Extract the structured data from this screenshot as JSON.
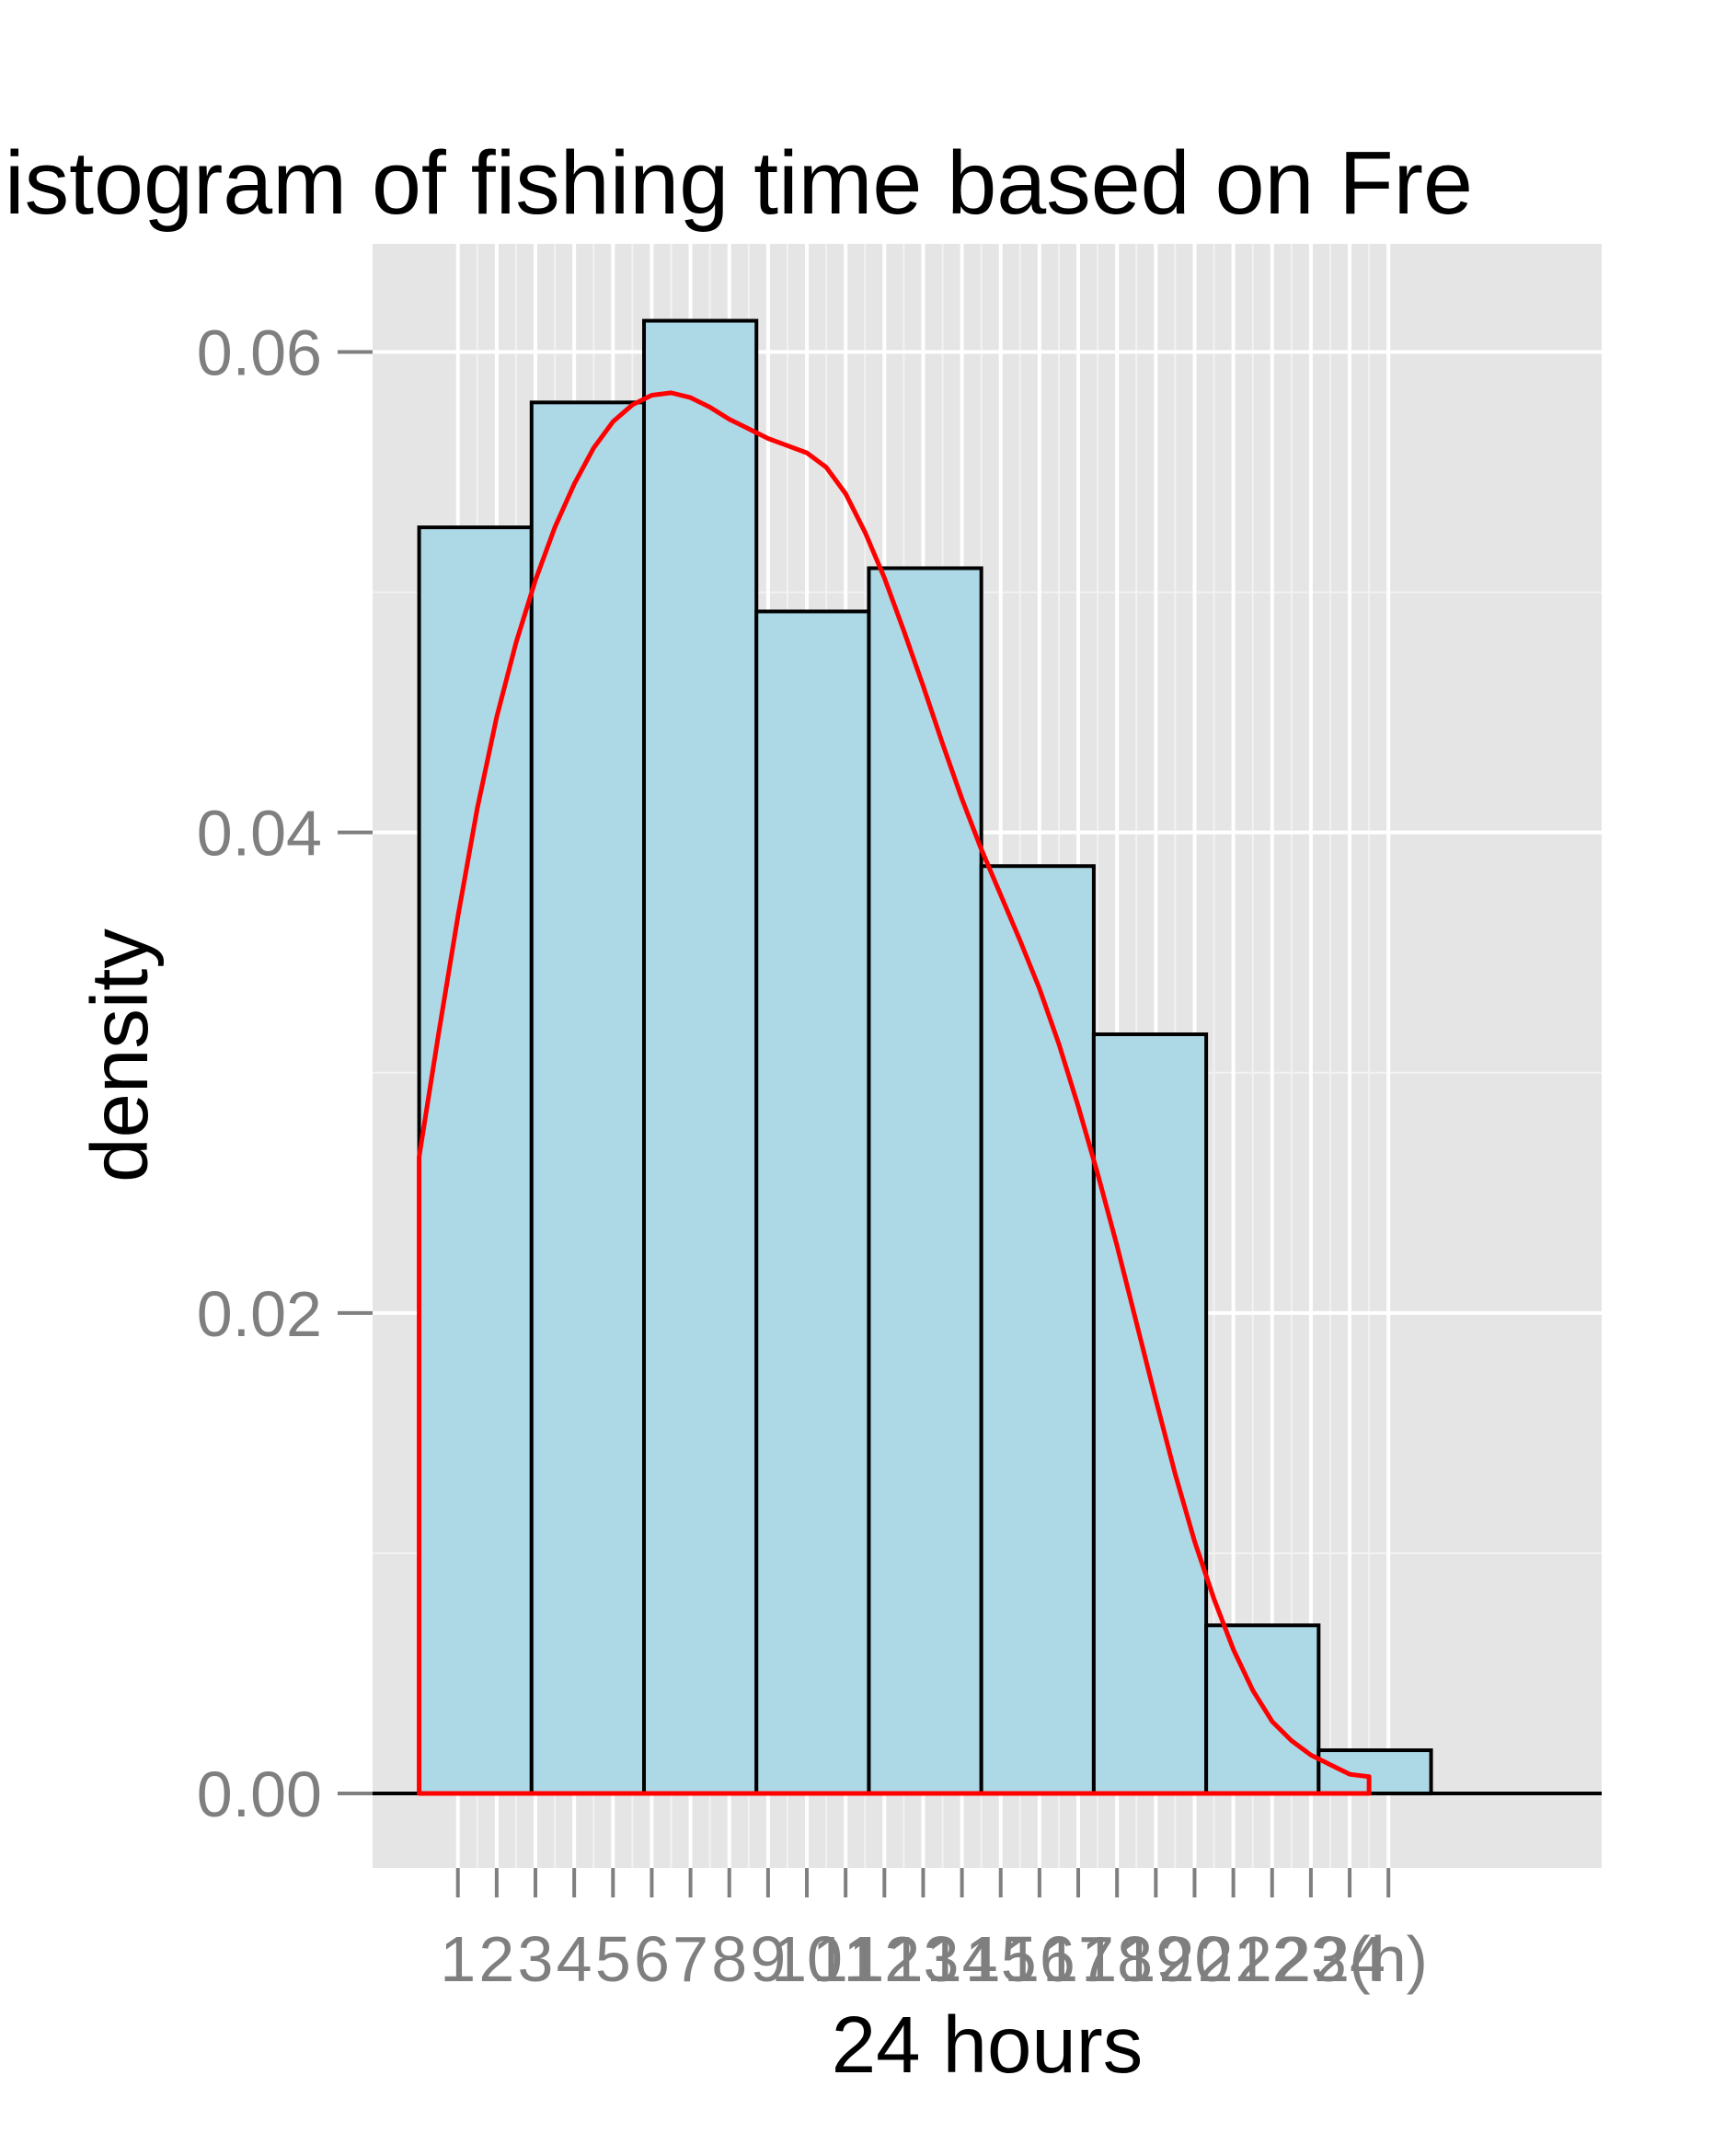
{
  "chart_data": {
    "type": "bar",
    "title": "Histogram of fishing time based on Fre",
    "xlabel": "24 hours",
    "ylabel": "density",
    "xlim": [
      -1.2,
      30.5
    ],
    "ylim": [
      -0.0031,
      0.0645
    ],
    "y_ticks": [
      0.0,
      0.02,
      0.04,
      0.06
    ],
    "y_tick_labels": [
      "0.00",
      "0.02",
      "0.04",
      "0.06"
    ],
    "x_ticks": [
      1,
      2,
      3,
      4,
      5,
      6,
      7,
      8,
      9,
      10,
      11,
      12,
      13,
      14,
      15,
      16,
      17,
      18,
      19,
      20,
      21,
      22,
      23,
      24,
      25
    ],
    "x_tick_labels": [
      "1",
      "2",
      "3",
      "4",
      "5",
      "6",
      "7",
      "8",
      "9",
      "10",
      "11",
      "12",
      "13",
      "14",
      "15",
      "16",
      "17",
      "18",
      "19",
      "20",
      "21",
      "22",
      "23",
      "24",
      "(h)"
    ],
    "grid": true,
    "bins": [
      {
        "x0": 0.0,
        "x1": 2.9,
        "density": 0.0527
      },
      {
        "x0": 2.9,
        "x1": 5.8,
        "density": 0.0579
      },
      {
        "x0": 5.8,
        "x1": 8.7,
        "density": 0.0613
      },
      {
        "x0": 8.7,
        "x1": 11.6,
        "density": 0.0492
      },
      {
        "x0": 11.6,
        "x1": 14.5,
        "density": 0.051
      },
      {
        "x0": 14.5,
        "x1": 17.4,
        "density": 0.0386
      },
      {
        "x0": 17.4,
        "x1": 20.3,
        "density": 0.0316
      },
      {
        "x0": 20.3,
        "x1": 23.2,
        "density": 0.007
      },
      {
        "x0": 23.2,
        "x1": 26.1,
        "density": 0.0018
      }
    ],
    "density_curve": {
      "x": [
        0.0,
        0.5,
        1.0,
        1.5,
        2.0,
        2.5,
        3.0,
        3.5,
        4.0,
        4.5,
        5.0,
        5.5,
        6.0,
        6.5,
        7.0,
        7.5,
        8.0,
        8.5,
        9.0,
        9.5,
        10.0,
        10.5,
        11.0,
        11.5,
        12.0,
        12.5,
        13.0,
        13.5,
        14.0,
        14.5,
        15.0,
        15.5,
        16.0,
        16.5,
        17.0,
        17.5,
        18.0,
        18.5,
        19.0,
        19.5,
        20.0,
        20.5,
        21.0,
        21.5,
        22.0,
        22.5,
        23.0,
        23.5,
        24.0,
        24.5
      ],
      "y": [
        0.0265,
        0.0316,
        0.0365,
        0.041,
        0.0448,
        0.0479,
        0.0505,
        0.0527,
        0.0545,
        0.056,
        0.0571,
        0.0578,
        0.0582,
        0.0583,
        0.0581,
        0.0577,
        0.0572,
        0.0568,
        0.0564,
        0.0561,
        0.0558,
        0.0552,
        0.0541,
        0.0525,
        0.0506,
        0.0484,
        0.0461,
        0.0437,
        0.0414,
        0.0393,
        0.0374,
        0.0355,
        0.0335,
        0.0312,
        0.0286,
        0.0258,
        0.0228,
        0.0196,
        0.0164,
        0.0133,
        0.0105,
        0.0081,
        0.006,
        0.0043,
        0.003,
        0.0022,
        0.0016,
        0.0012,
        0.0008,
        0.0007
      ]
    },
    "colors": {
      "panel": "#e5e5e5",
      "grid_major": "#ffffff",
      "grid_minor": "#f2f2f2",
      "bar_fill": "#add8e6",
      "bar_outline": "#000000",
      "curve": "#ff0000",
      "tick_label": "#7f7f7f",
      "title": "#000000"
    }
  }
}
